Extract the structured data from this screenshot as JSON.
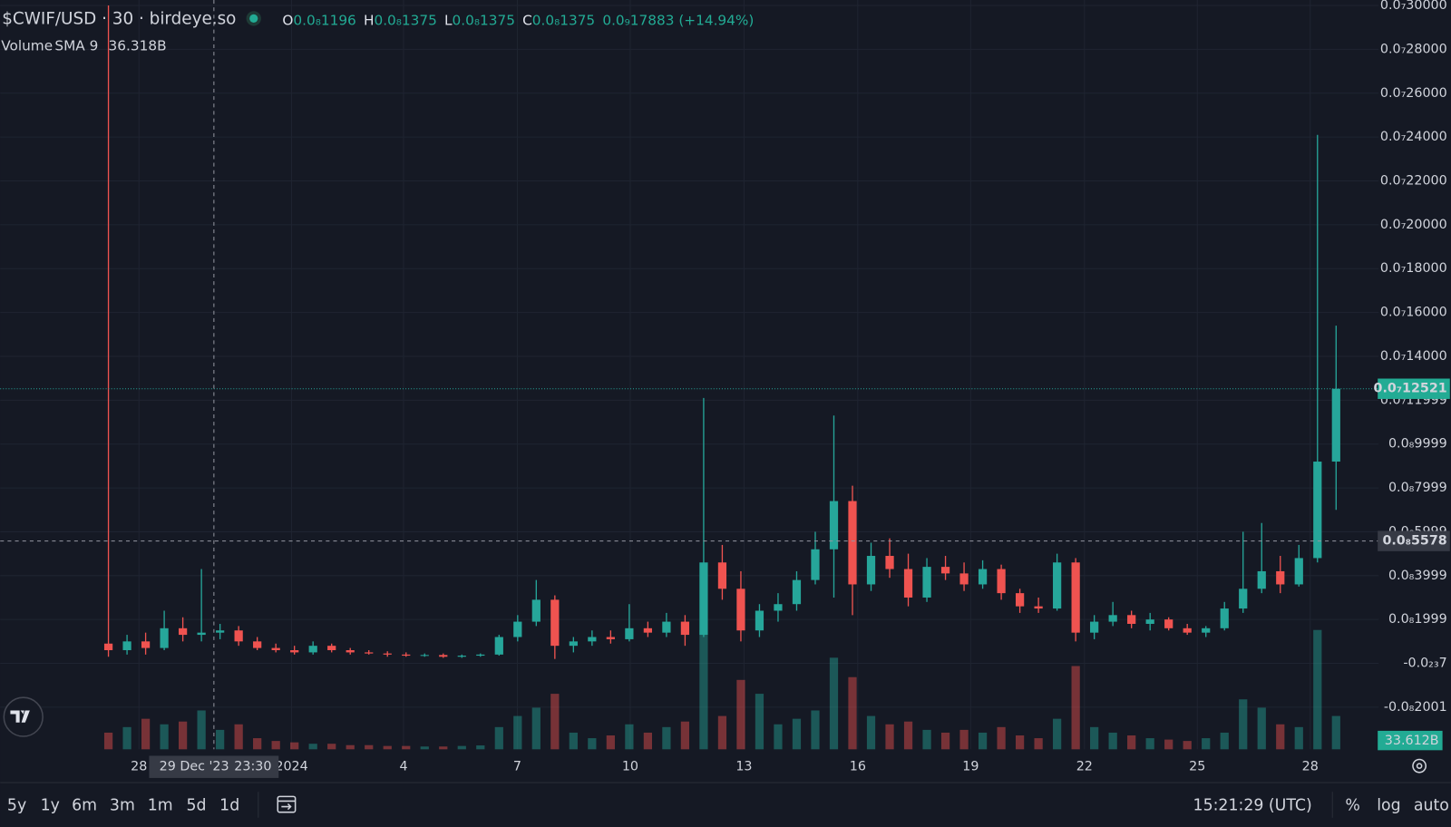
{
  "header": {
    "symbol": "$CWIF/USD · 30 · birdeye.so",
    "ohlc": [
      {
        "key": "O",
        "value": "0.0₈1196"
      },
      {
        "key": "H",
        "value": "0.0₈1375"
      },
      {
        "key": "L",
        "value": "0.0₈1375"
      },
      {
        "key": "C",
        "value": "0.0₈1375"
      }
    ],
    "change": "0.0₉17883 (+14.94%)"
  },
  "volume_indicator": {
    "name": "Volume",
    "params": "SMA 9",
    "value": "36.318B"
  },
  "chart_data": {
    "type": "candlestick",
    "x_labels": [
      "28",
      "2024",
      "4",
      "7",
      "10",
      "13",
      "16",
      "19",
      "22",
      "25",
      "28"
    ],
    "crosshair_date": "29 Dec '23",
    "crosshair_time": "23:30",
    "open": [
      9e-10,
      6e-10,
      1e-09,
      7e-10,
      1.6e-09,
      1.3e-09,
      1.4e-09,
      1.5e-09,
      1e-09,
      7e-10,
      6e-10,
      5e-10,
      8e-10,
      6e-10,
      5e-10,
      4.5e-10,
      4e-10,
      3.5e-10,
      3.8e-10,
      3e-10,
      3.5e-10,
      4e-10,
      1.2e-09,
      1.9e-09,
      2.9e-09,
      8e-10,
      1e-09,
      1.2e-09,
      1.1e-09,
      1.6e-09,
      1.4e-09,
      1.9e-09,
      1.3e-09,
      4.6e-09,
      3.4e-09,
      1.5e-09,
      2.4e-09,
      2.7e-09,
      3.8e-09,
      5.2e-09,
      7.4e-09,
      3.6e-09,
      4.9e-09,
      4.3e-09,
      3e-09,
      4.4e-09,
      4.1e-09,
      3.6e-09,
      4.3e-09,
      3.2e-09,
      2.6e-09,
      2.5e-09,
      4.6e-09,
      1.4e-09,
      1.9e-09,
      2.2e-09,
      1.8e-09,
      2e-09,
      1.6e-09,
      1.4e-09,
      1.6e-09,
      2.5e-09,
      3.4e-09,
      4.2e-09,
      3.6e-09,
      4.8e-09,
      9.2e-09
    ],
    "high": [
      3e-08,
      1.3e-09,
      1.4e-09,
      2.4e-09,
      2.1e-09,
      4.3e-09,
      1.8e-09,
      1.7e-09,
      1.2e-09,
      9e-10,
      8e-10,
      1e-09,
      9e-10,
      7e-10,
      6e-10,
      5.5e-10,
      5e-10,
      4.5e-10,
      4.5e-10,
      4e-10,
      4.5e-10,
      1.3e-09,
      2.2e-09,
      3.8e-09,
      3.1e-09,
      1.2e-09,
      1.5e-09,
      1.5e-09,
      2.7e-09,
      1.9e-09,
      2.3e-09,
      2.2e-09,
      1.21e-08,
      5.4e-09,
      4.2e-09,
      2.7e-09,
      3.2e-09,
      4.2e-09,
      6e-09,
      1.13e-08,
      8.1e-09,
      5.5e-09,
      5.7e-09,
      5e-09,
      4.8e-09,
      4.9e-09,
      4.6e-09,
      4.7e-09,
      4.5e-09,
      3.4e-09,
      3e-09,
      5e-09,
      4.8e-09,
      2.2e-09,
      2.8e-09,
      2.4e-09,
      2.3e-09,
      2.1e-09,
      1.8e-09,
      1.7e-09,
      2.8e-09,
      6e-09,
      6.4e-09,
      4.9e-09,
      5.4e-09,
      2.41e-08,
      1.54e-08
    ],
    "low": [
      3e-10,
      4e-10,
      4e-10,
      6e-10,
      1e-09,
      1e-09,
      1.1e-09,
      8e-10,
      6e-10,
      5e-10,
      4e-10,
      4e-10,
      5e-10,
      4e-10,
      4e-10,
      3e-10,
      3e-10,
      3e-10,
      2.5e-10,
      2.5e-10,
      3e-10,
      3.5e-10,
      1e-09,
      1.7e-09,
      2e-10,
      5e-10,
      8e-10,
      9e-10,
      1e-09,
      1.2e-09,
      1.2e-09,
      8e-10,
      1.2e-09,
      2.9e-09,
      1e-09,
      1.2e-09,
      1.9e-09,
      2.4e-09,
      3.6e-09,
      3e-09,
      2.2e-09,
      3.3e-09,
      3.9e-09,
      2.6e-09,
      2.8e-09,
      3.8e-09,
      3.3e-09,
      3.4e-09,
      2.9e-09,
      2.3e-09,
      2.3e-09,
      2.4e-09,
      1e-09,
      1.1e-09,
      1.7e-09,
      1.6e-09,
      1.5e-09,
      1.5e-09,
      1.3e-09,
      1.2e-09,
      1.5e-09,
      2.3e-09,
      3.2e-09,
      3.2e-09,
      3.5e-09,
      4.6e-09,
      7e-09
    ],
    "close": [
      6e-10,
      1e-09,
      7e-10,
      1.6e-09,
      1.3e-09,
      1.4e-09,
      1.5e-09,
      1e-09,
      7e-10,
      6e-10,
      5e-10,
      8e-10,
      6e-10,
      5e-10,
      4.5e-10,
      4e-10,
      3.5e-10,
      3.8e-10,
      3e-10,
      3.5e-10,
      4e-10,
      1.2e-09,
      1.9e-09,
      2.9e-09,
      8e-10,
      1e-09,
      1.2e-09,
      1.1e-09,
      1.6e-09,
      1.4e-09,
      1.9e-09,
      1.3e-09,
      4.6e-09,
      3.4e-09,
      1.5e-09,
      2.4e-09,
      2.7e-09,
      3.8e-09,
      5.2e-09,
      7.4e-09,
      3.6e-09,
      4.9e-09,
      4.3e-09,
      3e-09,
      4.4e-09,
      4.1e-09,
      3.6e-09,
      4.3e-09,
      3.2e-09,
      2.6e-09,
      2.5e-09,
      4.6e-09,
      1.4e-09,
      1.9e-09,
      2.2e-09,
      1.8e-09,
      2e-09,
      1.6e-09,
      1.4e-09,
      1.6e-09,
      2.5e-09,
      3.4e-09,
      4.2e-09,
      3.6e-09,
      4.8e-09,
      9.2e-09,
      1.2521e-08
    ],
    "volume": [
      60,
      80,
      110,
      90,
      100,
      140,
      70,
      90,
      40,
      30,
      25,
      20,
      20,
      15,
      15,
      12,
      12,
      10,
      10,
      12,
      14,
      80,
      120,
      150,
      200,
      60,
      40,
      50,
      90,
      60,
      80,
      100,
      430,
      120,
      250,
      200,
      90,
      110,
      140,
      330,
      260,
      120,
      90,
      100,
      70,
      60,
      70,
      60,
      80,
      50,
      40,
      110,
      300,
      80,
      60,
      50,
      40,
      35,
      30,
      40,
      60,
      180,
      150,
      90,
      80,
      430,
      120
    ],
    "up_color": "#26a69a",
    "down_color": "#ef5350",
    "ylim": [
      -3.92e-09,
      3.025e-08
    ],
    "yticks": [
      {
        "value": 3e-08,
        "label": "0.0₇30000"
      },
      {
        "value": 2.8e-08,
        "label": "0.0₇28000"
      },
      {
        "value": 2.6e-08,
        "label": "0.0₇26000"
      },
      {
        "value": 2.4e-08,
        "label": "0.0₇24000"
      },
      {
        "value": 2.2e-08,
        "label": "0.0₇22000"
      },
      {
        "value": 2e-08,
        "label": "0.0₇20000"
      },
      {
        "value": 1.8e-08,
        "label": "0.0₇18000"
      },
      {
        "value": 1.6e-08,
        "label": "0.0₇16000"
      },
      {
        "value": 1.4e-08,
        "label": "0.0₇14000"
      },
      {
        "value": 1.1999e-08,
        "label": "0.0₇11999"
      },
      {
        "value": 9.999e-09,
        "label": "0.0₈9999"
      },
      {
        "value": 7.999e-09,
        "label": "0.0₈7999"
      },
      {
        "value": 5.999e-09,
        "label": "0.0₈5999"
      },
      {
        "value": 3.999e-09,
        "label": "0.0₈3999"
      },
      {
        "value": 1.999e-09,
        "label": "0.0₈1999"
      },
      {
        "value": -7e-24,
        "label": "-0.0₂₃7"
      },
      {
        "value": -2.001e-09,
        "label": "-0.0₈2001"
      }
    ],
    "grid": true,
    "last_price": {
      "value": 1.2521e-08,
      "label": "0.0₇12521"
    },
    "crosshair_price": {
      "value": 5.578e-09,
      "label": "0.0₈5578"
    },
    "last_volume": {
      "value": 33.612,
      "label": "33.612B"
    }
  },
  "toolbar": {
    "ranges": [
      "5y",
      "1y",
      "6m",
      "3m",
      "1m",
      "5d",
      "1d"
    ],
    "time": "15:21:29 (UTC)",
    "options": [
      "%",
      "log",
      "auto"
    ]
  }
}
